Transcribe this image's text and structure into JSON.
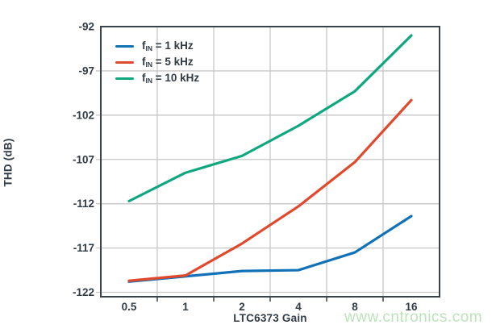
{
  "watermark": "www.cntronics.com",
  "colors": {
    "background": "#ffffff",
    "axis": "#39434b",
    "grid": "#c7c7c7",
    "text": "#323c46",
    "watermark": "#bce3ba"
  },
  "chart_data": {
    "type": "line",
    "title": "",
    "xlabel": "LTC6373 Gain",
    "ylabel": "THD (dB)",
    "x_scale": "log2",
    "x_ticks": [
      0.5,
      1,
      2,
      4,
      8,
      16
    ],
    "x_gridlines": [
      0.707,
      1.414,
      2.828,
      5.657,
      11.314
    ],
    "xlim_log2": [
      -1.5,
      4.5
    ],
    "y_ticks": [
      -92,
      -97,
      -102,
      -107,
      -112,
      -117,
      -122
    ],
    "ylim": [
      -122.5,
      -92
    ],
    "grid": true,
    "legend_position": "top-left-inside",
    "categories": [
      0.5,
      1,
      2,
      4,
      8,
      16
    ],
    "series": [
      {
        "name": "fIN = 1 kHz",
        "label_parts": {
          "prefix": "f",
          "sub": "IN",
          "rest": " = 1 kHz"
        },
        "color": "#1272b8",
        "values": [
          -120.8,
          -120.2,
          -119.6,
          -119.5,
          -117.5,
          -113.4
        ]
      },
      {
        "name": "fIN = 5 kHz",
        "label_parts": {
          "prefix": "f",
          "sub": "IN",
          "rest": " = 5 kHz"
        },
        "color": "#e1492c",
        "values": [
          -120.7,
          -120.1,
          -116.5,
          -112.3,
          -107.3,
          -100.3
        ]
      },
      {
        "name": "fIN = 10 kHz",
        "label_parts": {
          "prefix": "f",
          "sub": "IN",
          "rest": " = 10 kHz"
        },
        "color": "#0fa87e",
        "values": [
          -111.7,
          -108.5,
          -106.6,
          -103.2,
          -99.3,
          -93.0
        ]
      }
    ]
  }
}
